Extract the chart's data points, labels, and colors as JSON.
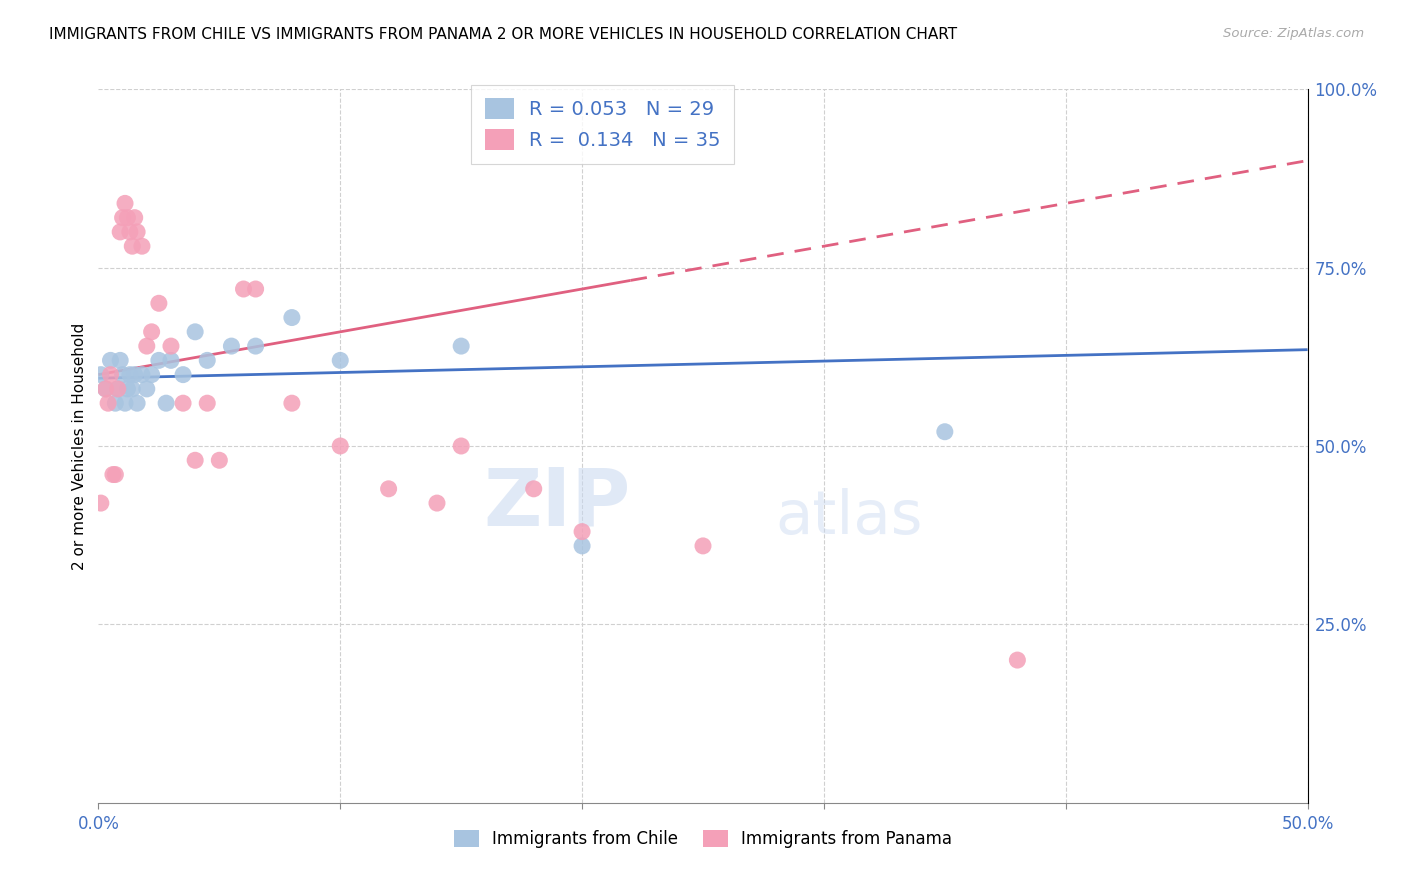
{
  "title": "IMMIGRANTS FROM CHILE VS IMMIGRANTS FROM PANAMA 2 OR MORE VEHICLES IN HOUSEHOLD CORRELATION CHART",
  "source": "Source: ZipAtlas.com",
  "ylabel": "2 or more Vehicles in Household",
  "xlim": [
    0.0,
    0.5
  ],
  "ylim": [
    0.0,
    1.0
  ],
  "chile_color": "#a8c4e0",
  "panama_color": "#f4a0b8",
  "chile_line_color": "#4472c4",
  "panama_line_color": "#e06080",
  "chile_R": 0.053,
  "chile_N": 29,
  "panama_R": 0.134,
  "panama_N": 35,
  "legend_label_chile": "Immigrants from Chile",
  "legend_label_panama": "Immigrants from Panama",
  "watermark_zip": "ZIP",
  "watermark_atlas": "atlas",
  "chile_x": [
    0.001,
    0.003,
    0.005,
    0.007,
    0.008,
    0.009,
    0.01,
    0.011,
    0.012,
    0.013,
    0.014,
    0.015,
    0.016,
    0.018,
    0.02,
    0.022,
    0.025,
    0.028,
    0.03,
    0.035,
    0.04,
    0.045,
    0.055,
    0.065,
    0.08,
    0.1,
    0.15,
    0.2,
    0.35
  ],
  "chile_y": [
    0.6,
    0.58,
    0.62,
    0.56,
    0.58,
    0.62,
    0.6,
    0.56,
    0.58,
    0.6,
    0.58,
    0.6,
    0.56,
    0.6,
    0.58,
    0.6,
    0.62,
    0.56,
    0.62,
    0.6,
    0.66,
    0.62,
    0.64,
    0.64,
    0.68,
    0.62,
    0.64,
    0.36,
    0.52
  ],
  "panama_x": [
    0.001,
    0.003,
    0.004,
    0.005,
    0.006,
    0.007,
    0.008,
    0.009,
    0.01,
    0.011,
    0.012,
    0.013,
    0.014,
    0.015,
    0.016,
    0.018,
    0.02,
    0.022,
    0.025,
    0.03,
    0.035,
    0.04,
    0.045,
    0.05,
    0.06,
    0.065,
    0.08,
    0.1,
    0.12,
    0.14,
    0.15,
    0.18,
    0.2,
    0.25,
    0.38
  ],
  "panama_y": [
    0.42,
    0.58,
    0.56,
    0.6,
    0.46,
    0.46,
    0.58,
    0.8,
    0.82,
    0.84,
    0.82,
    0.8,
    0.78,
    0.82,
    0.8,
    0.78,
    0.64,
    0.66,
    0.7,
    0.64,
    0.56,
    0.48,
    0.56,
    0.48,
    0.72,
    0.72,
    0.56,
    0.5,
    0.44,
    0.42,
    0.5,
    0.44,
    0.38,
    0.36,
    0.2
  ]
}
